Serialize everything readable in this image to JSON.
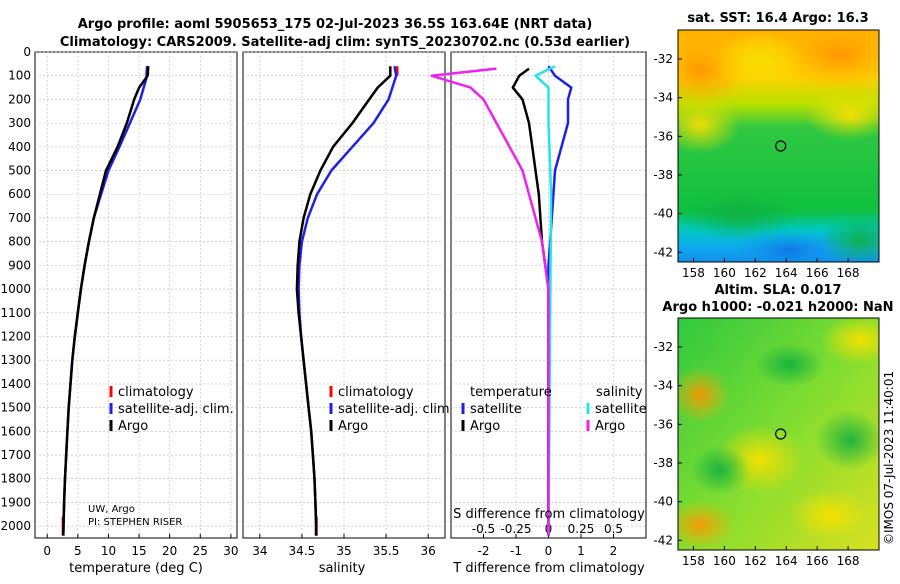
{
  "title_line1": "Argo profile: aoml 5905653_175 02-Jul-2023 36.5S 163.64E (NRT data)",
  "title_line2": "Climatology: CARS2009. Satellite-adj clim: synTS_20230702.nc (0.53d earlier)",
  "colors": {
    "argo": "#000000",
    "climatology": "#ff0000",
    "satellite": "#1f1fe6",
    "cyan": "#22e6e6",
    "magenta": "#ee22ee",
    "grid": "#b8b8b8"
  },
  "chart_data": [
    {
      "type": "line",
      "name": "temperature-profile",
      "xlabel": "temperature (deg C)",
      "xlim": [
        -2,
        31
      ],
      "xticks": [
        0,
        5,
        10,
        15,
        20,
        25,
        30
      ],
      "ylim": [
        0,
        2050
      ],
      "yticks": [
        0,
        100,
        200,
        300,
        400,
        500,
        600,
        700,
        800,
        900,
        1000,
        1100,
        1200,
        1300,
        1400,
        1500,
        1600,
        1700,
        1800,
        1900,
        2000
      ],
      "legend": [
        "climatology",
        "satellite-adj. clim.",
        "Argo"
      ],
      "annotation_line1": "UW, Argo",
      "annotation_line2": "PI: STEPHEN RISER",
      "series": [
        {
          "name": "climatology",
          "color": "#ff0000",
          "points": [
            [
              2.6,
              1960
            ],
            [
              2.6,
              2040
            ],
            [
              16.4,
              60
            ],
            [
              16.4,
              100
            ]
          ]
        },
        {
          "name": "satellite-adj. clim.",
          "points": [
            [
              16.3,
              60
            ],
            [
              16.2,
              110
            ],
            [
              15.2,
              200
            ],
            [
              13.5,
              300
            ],
            [
              11.8,
              400
            ],
            [
              10.0,
              500
            ],
            [
              8.8,
              600
            ],
            [
              7.6,
              700
            ],
            [
              6.8,
              800
            ],
            [
              6.1,
              900
            ],
            [
              5.5,
              1000
            ],
            [
              5.0,
              1100
            ],
            [
              4.5,
              1200
            ],
            [
              4.1,
              1300
            ],
            [
              3.8,
              1400
            ],
            [
              3.5,
              1500
            ],
            [
              3.3,
              1600
            ],
            [
              3.1,
              1700
            ],
            [
              2.9,
              1800
            ],
            [
              2.75,
              1900
            ],
            [
              2.65,
              2000
            ],
            [
              2.6,
              2040
            ]
          ]
        },
        {
          "name": "Argo",
          "points": [
            [
              16.5,
              60
            ],
            [
              16.4,
              100
            ],
            [
              15.0,
              150
            ],
            [
              14.2,
              200
            ],
            [
              13.0,
              300
            ],
            [
              11.5,
              400
            ],
            [
              9.6,
              500
            ],
            [
              8.6,
              600
            ],
            [
              7.6,
              700
            ],
            [
              6.8,
              800
            ],
            [
              6.1,
              900
            ],
            [
              5.5,
              1000
            ],
            [
              5.0,
              1100
            ],
            [
              4.5,
              1200
            ],
            [
              4.1,
              1300
            ],
            [
              3.8,
              1400
            ],
            [
              3.5,
              1500
            ],
            [
              3.3,
              1600
            ],
            [
              3.1,
              1700
            ],
            [
              2.9,
              1800
            ],
            [
              2.75,
              1900
            ],
            [
              2.65,
              2000
            ],
            [
              2.6,
              2040
            ]
          ]
        }
      ]
    },
    {
      "type": "line",
      "name": "salinity-profile",
      "xlabel": "salinity",
      "xlim": [
        33.8,
        36.2
      ],
      "xticks": [
        34,
        34.5,
        35,
        35.5,
        36
      ],
      "ylim": [
        0,
        2050
      ],
      "legend": [
        "climatology",
        "satellite-adj. clim.",
        "Argo"
      ],
      "series": [
        {
          "name": "climatology",
          "points": [
            [
              34.67,
              1960
            ],
            [
              34.67,
              2040
            ],
            [
              35.63,
              60
            ],
            [
              35.63,
              100
            ]
          ]
        },
        {
          "name": "satellite-adj. clim.",
          "points": [
            [
              35.6,
              60
            ],
            [
              35.62,
              100
            ],
            [
              35.53,
              200
            ],
            [
              35.35,
              300
            ],
            [
              35.1,
              400
            ],
            [
              34.85,
              500
            ],
            [
              34.68,
              600
            ],
            [
              34.57,
              700
            ],
            [
              34.5,
              800
            ],
            [
              34.47,
              900
            ],
            [
              34.46,
              1000
            ],
            [
              34.47,
              1100
            ],
            [
              34.49,
              1200
            ],
            [
              34.52,
              1300
            ],
            [
              34.55,
              1400
            ],
            [
              34.58,
              1500
            ],
            [
              34.61,
              1600
            ],
            [
              34.63,
              1700
            ],
            [
              34.65,
              1800
            ],
            [
              34.66,
              1900
            ],
            [
              34.67,
              2000
            ],
            [
              34.67,
              2040
            ]
          ]
        },
        {
          "name": "Argo",
          "points": [
            [
              35.55,
              60
            ],
            [
              35.55,
              100
            ],
            [
              35.4,
              150
            ],
            [
              35.3,
              200
            ],
            [
              35.1,
              300
            ],
            [
              34.87,
              400
            ],
            [
              34.72,
              500
            ],
            [
              34.6,
              600
            ],
            [
              34.52,
              700
            ],
            [
              34.47,
              800
            ],
            [
              34.45,
              900
            ],
            [
              34.44,
              1000
            ],
            [
              34.46,
              1100
            ],
            [
              34.49,
              1200
            ],
            [
              34.52,
              1300
            ],
            [
              34.55,
              1400
            ],
            [
              34.58,
              1500
            ],
            [
              34.61,
              1600
            ],
            [
              34.63,
              1700
            ],
            [
              34.65,
              1800
            ],
            [
              34.66,
              1900
            ],
            [
              34.67,
              2000
            ],
            [
              34.67,
              2040
            ]
          ]
        }
      ]
    },
    {
      "type": "line",
      "name": "difference-profile",
      "xlabel": "T difference from climatology",
      "xlabel_top": "S difference from climatology",
      "xlim": [
        -3,
        3
      ],
      "xticks": [
        -2,
        -1,
        0,
        1,
        2
      ],
      "xticks_S": [
        "-0.5",
        "-0.25",
        "0",
        "0.25",
        "0.5"
      ],
      "ylim": [
        0,
        2050
      ],
      "legend_left_title": "temperature",
      "legend_right_title": "salinity",
      "legend_left": [
        "satellite",
        "Argo"
      ],
      "legend_right": [
        "satellite",
        "Argo"
      ],
      "series": [
        {
          "name": "temperature satellite",
          "points": [
            [
              0,
              60
            ],
            [
              0.2,
              100
            ],
            [
              0.7,
              150
            ],
            [
              0.6,
              200
            ],
            [
              0.6,
              300
            ],
            [
              0.4,
              400
            ],
            [
              0.2,
              500
            ],
            [
              0.1,
              700
            ],
            [
              0,
              900
            ],
            [
              0,
              2040
            ]
          ]
        },
        {
          "name": "temperature Argo",
          "points": [
            [
              -0.6,
              70
            ],
            [
              -0.9,
              100
            ],
            [
              -1.1,
              150
            ],
            [
              -0.8,
              200
            ],
            [
              -0.6,
              300
            ],
            [
              -0.5,
              400
            ],
            [
              -0.4,
              500
            ],
            [
              -0.3,
              600
            ],
            [
              -0.25,
              700
            ],
            [
              -0.2,
              800
            ],
            [
              -0.1,
              900
            ],
            [
              0,
              1000
            ],
            [
              0,
              2040
            ]
          ]
        },
        {
          "name": "salinity satellite",
          "points": [
            [
              0.05,
              60
            ],
            [
              -0.1,
              100
            ],
            [
              0,
              150
            ],
            [
              0,
              300
            ],
            [
              0.02,
              600
            ],
            [
              0,
              2040
            ]
          ]
        },
        {
          "name": "salinity Argo",
          "points": [
            [
              -0.4,
              70
            ],
            [
              -0.9,
              100
            ],
            [
              -0.6,
              150
            ],
            [
              -0.5,
              200
            ],
            [
              -0.4,
              300
            ],
            [
              -0.3,
              400
            ],
            [
              -0.2,
              500
            ],
            [
              -0.15,
              600
            ],
            [
              -0.1,
              700
            ],
            [
              -0.05,
              800
            ],
            [
              0,
              1000
            ],
            [
              0,
              2040
            ]
          ]
        }
      ]
    },
    {
      "type": "heatmap",
      "name": "sst-map",
      "title": "sat. SST: 16.4 Argo: 16.3",
      "xticks": [
        158,
        160,
        162,
        164,
        166,
        168
      ],
      "yticks": [
        -32,
        -34,
        -36,
        -38,
        -40,
        -42
      ],
      "xlim": [
        157,
        170
      ],
      "ylim": [
        -42.5,
        -30.5
      ],
      "marker": [
        163.64,
        -36.5
      ]
    },
    {
      "type": "heatmap",
      "name": "sla-map",
      "title_line1": "Altim. SLA: 0.017",
      "title_line2": "Argo h1000: -0.021 h2000: NaN",
      "xticks": [
        158,
        160,
        162,
        164,
        166,
        168
      ],
      "yticks": [
        -32,
        -34,
        -36,
        -38,
        -40,
        -42
      ],
      "xlim": [
        157,
        170
      ],
      "ylim": [
        -42.5,
        -30.5
      ],
      "marker": [
        163.64,
        -36.5
      ]
    }
  ],
  "watermark": "©IMOS 07-Jul-2023 11:40:01"
}
